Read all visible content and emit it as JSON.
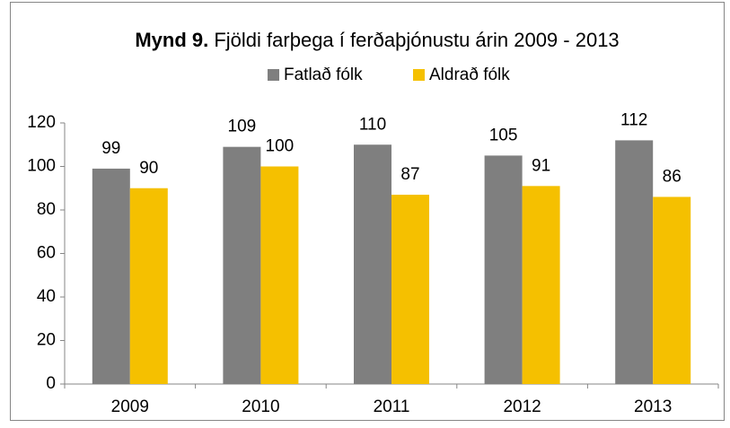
{
  "chart_data": {
    "type": "bar",
    "title_prefix": "Mynd 9.",
    "title": "Fjöldi farþega í ferðaþjónustu árin 2009 - 2013",
    "categories": [
      "2009",
      "2010",
      "2011",
      "2012",
      "2013"
    ],
    "series": [
      {
        "name": "Fatlað fólk",
        "color": "#7f7f7f",
        "values": [
          99,
          109,
          110,
          105,
          112
        ]
      },
      {
        "name": "Aldrað fólk",
        "color": "#f5c000",
        "values": [
          90,
          100,
          87,
          91,
          86
        ]
      }
    ],
    "ylim": [
      0,
      120
    ],
    "yticks": [
      0,
      20,
      40,
      60,
      80,
      100,
      120
    ],
    "grid": false,
    "legend": "top"
  }
}
